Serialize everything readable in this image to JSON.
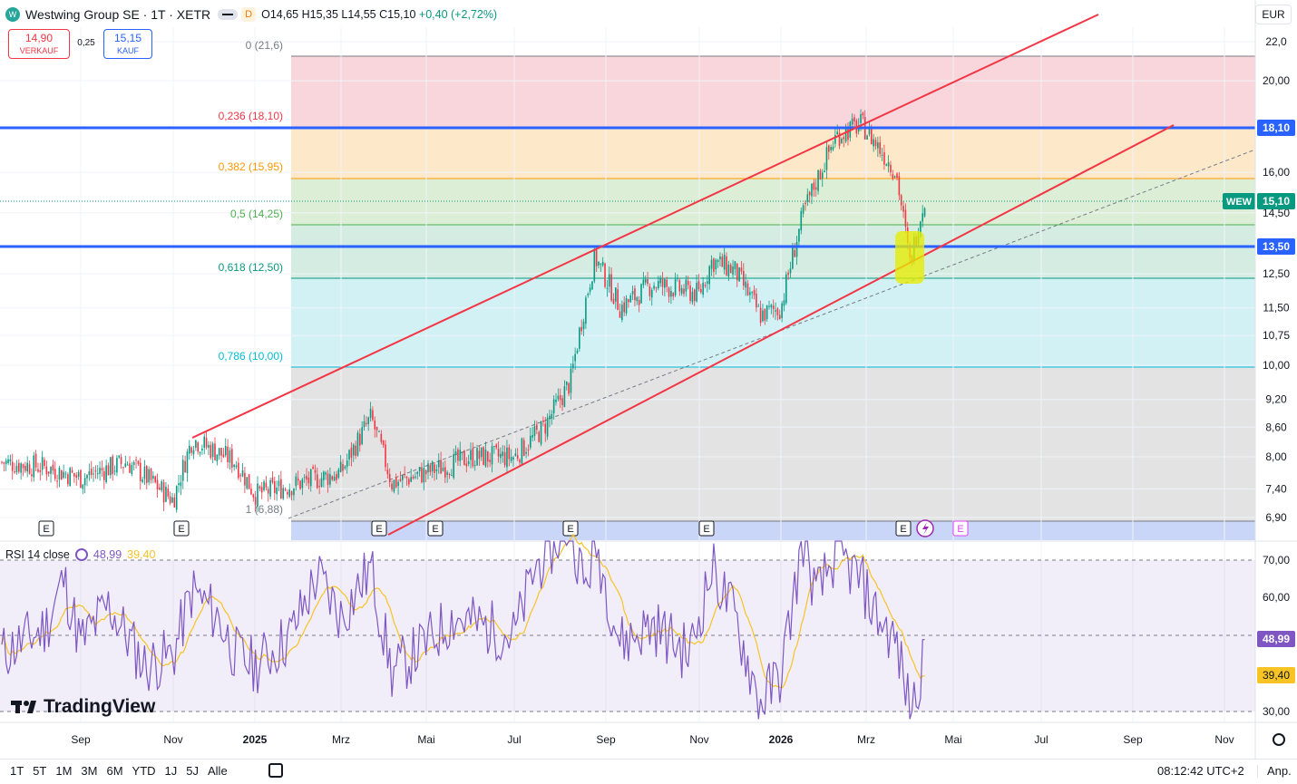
{
  "header": {
    "logo_letter": "W",
    "title": "Westwing Group SE · 1T · XETR",
    "interval_badge": "D",
    "open": "O14,65",
    "high": "H15,35",
    "low": "L14,55",
    "close": "C15,10",
    "change": "+0,40 (+2,72%)",
    "currency": "EUR"
  },
  "trade": {
    "sell_price": "14,90",
    "sell_label": "VERKAUF",
    "spread": "0,25",
    "buy_price": "15,15",
    "buy_label": "KAUF"
  },
  "price_axis": {
    "ticks": [
      "22,0",
      "20,00",
      "18,10",
      "16,00",
      "15,10",
      "14,50",
      "13,50",
      "12,50",
      "11,50",
      "10,75",
      "10,00",
      "9,20",
      "8,60",
      "8,00",
      "7,40",
      "6,90"
    ],
    "tick_values": [
      22.0,
      20.0,
      16.0,
      14.5,
      12.5,
      11.5,
      10.75,
      10.0,
      9.2,
      8.6,
      8.0,
      7.4,
      6.9
    ],
    "symbol_tag": "WEW",
    "last_price_tag": "15,10",
    "hline_tags": [
      "18,10",
      "13,50"
    ]
  },
  "fib_levels": [
    {
      "label": "0 (21,6)",
      "price": 21.6
    },
    {
      "label": "0,236 (18,10)",
      "price": 18.1
    },
    {
      "label": "0,382 (15,95)",
      "price": 15.95
    },
    {
      "label": "0,5 (14,25)",
      "price": 14.25
    },
    {
      "label": "0,618 (12,50)",
      "price": 12.5
    },
    {
      "label": "0,786 (10,00)",
      "price": 10.0
    },
    {
      "label": "1 (6,88)",
      "price": 6.88
    }
  ],
  "horizontal_lines": [
    18.1,
    13.5
  ],
  "event_markers": [
    "E",
    "E",
    "E",
    "E",
    "E",
    "E",
    "E",
    "E"
  ],
  "rsi": {
    "label": "RSI 14 close",
    "rsi_value": "48,99",
    "ma_value": "39,40",
    "axis_ticks": [
      "70,00",
      "60,00",
      "48,99",
      "39,40",
      "30,00"
    ],
    "levels": [
      70,
      50,
      30
    ]
  },
  "time_axis": [
    "Sep",
    "Nov",
    "2025",
    "Mrz",
    "Mai",
    "Jul",
    "Sep",
    "Nov",
    "2026",
    "Mrz",
    "Mai",
    "Jul",
    "Sep",
    "Nov"
  ],
  "toolbar": {
    "ranges": [
      "1T",
      "5T",
      "1M",
      "3M",
      "6M",
      "YTD",
      "1J",
      "5J",
      "Alle"
    ],
    "clock": "08:12:42 UTC+2",
    "adjust": "Anp."
  },
  "branding": "TradingView",
  "colors": {
    "up": "#089981",
    "down": "#f23645",
    "blue_line": "#2962ff",
    "channel": "#f23645",
    "rsi": "#7e57c2",
    "rsi_ma": "#f7c325",
    "highlight": "#e6ec00"
  },
  "chart_data": {
    "type": "candlestick",
    "symbol": "WEW",
    "ylim": [
      6.7,
      22.3
    ],
    "y_scale": "log",
    "anchors": [
      {
        "x": "Sep",
        "y": 7.9
      },
      {
        "x": "Nov",
        "y": 7.5
      },
      {
        "x": "Nov",
        "y": 8.35
      },
      {
        "x": "2025",
        "y": 7.3
      },
      {
        "x": "Mrz",
        "y": 7.7
      },
      {
        "x": "Mrz",
        "y": 8.8
      },
      {
        "x": "Mai",
        "y": 7.5
      },
      {
        "x": "Mai",
        "y": 8.0
      },
      {
        "x": "Jul",
        "y": 8.0
      },
      {
        "x": "Jul",
        "y": 9.6
      },
      {
        "x": "Sep",
        "y": 13.0
      },
      {
        "x": "Sep",
        "y": 11.5
      },
      {
        "x": "Nov",
        "y": 12.9
      },
      {
        "x": "Nov",
        "y": 11.6
      },
      {
        "x": "2026",
        "y": 11.3
      },
      {
        "x": "2026",
        "y": 15.5
      },
      {
        "x": "Mrz",
        "y": 18.0
      },
      {
        "x": "Mrz",
        "y": 16.0
      },
      {
        "x": "Mai",
        "y": 15.1
      }
    ]
  }
}
